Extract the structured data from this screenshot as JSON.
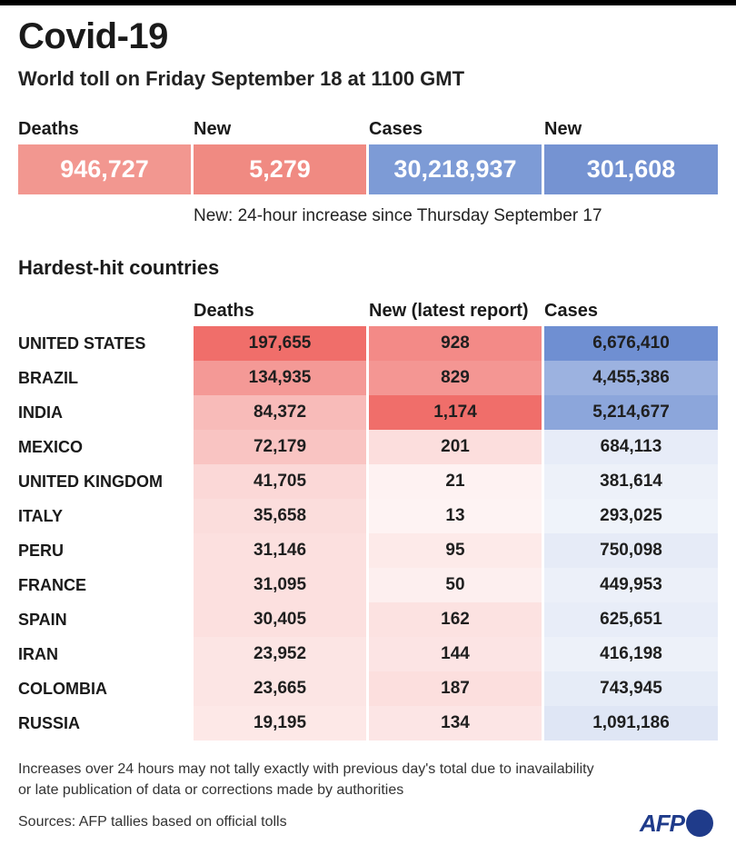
{
  "header": {
    "title": "Covid-19",
    "subtitle": "World toll on Friday September 18 at 1100 GMT"
  },
  "summary": {
    "deaths_label": "Deaths",
    "deaths": "946,727",
    "new_deaths_label": "New",
    "new_deaths": "5,279",
    "cases_label": "Cases",
    "cases": "30,218,937",
    "new_cases_label": "New",
    "new_cases": "301,608",
    "note": "New: 24-hour increase since Thursday September 17"
  },
  "section_title": "Hardest-hit countries",
  "footer": {
    "line1": "Increases over 24 hours may not tally exactly with previous day's total due to inavailability",
    "line2": "or late publication of data or corrections made by authorities",
    "sources": "Sources: AFP tallies based on official tolls",
    "logo": "AFP"
  },
  "colors": {
    "deaths_summary": "#f29790",
    "new_deaths_summary": "#f08a82",
    "cases_summary": "#7d9bd6",
    "new_cases_summary": "#7593d2",
    "red_scale": "#f06e6a",
    "blue_scale": "#6f8fd2"
  },
  "chart_data": {
    "type": "table",
    "columns": [
      "Deaths",
      "New (latest report)",
      "Cases"
    ],
    "rows": [
      {
        "country": "UNITED STATES",
        "deaths": 197655,
        "deaths_text": "197,655",
        "new": 928,
        "new_text": "928",
        "cases": 6676410,
        "cases_text": "6,676,410"
      },
      {
        "country": "BRAZIL",
        "deaths": 134935,
        "deaths_text": "134,935",
        "new": 829,
        "new_text": "829",
        "cases": 4455386,
        "cases_text": "4,455,386"
      },
      {
        "country": "INDIA",
        "deaths": 84372,
        "deaths_text": "84,372",
        "new": 1174,
        "new_text": "1,174",
        "cases": 5214677,
        "cases_text": "5,214,677"
      },
      {
        "country": "MEXICO",
        "deaths": 72179,
        "deaths_text": "72,179",
        "new": 201,
        "new_text": "201",
        "cases": 684113,
        "cases_text": "684,113"
      },
      {
        "country": "UNITED KINGDOM",
        "deaths": 41705,
        "deaths_text": "41,705",
        "new": 21,
        "new_text": "21",
        "cases": 381614,
        "cases_text": "381,614"
      },
      {
        "country": "ITALY",
        "deaths": 35658,
        "deaths_text": "35,658",
        "new": 13,
        "new_text": "13",
        "cases": 293025,
        "cases_text": "293,025"
      },
      {
        "country": "PERU",
        "deaths": 31146,
        "deaths_text": "31,146",
        "new": 95,
        "new_text": "95",
        "cases": 750098,
        "cases_text": "750,098"
      },
      {
        "country": "FRANCE",
        "deaths": 31095,
        "deaths_text": "31,095",
        "new": 50,
        "new_text": "50",
        "cases": 449953,
        "cases_text": "449,953"
      },
      {
        "country": "SPAIN",
        "deaths": 30405,
        "deaths_text": "30,405",
        "new": 162,
        "new_text": "162",
        "cases": 625651,
        "cases_text": "625,651"
      },
      {
        "country": "IRAN",
        "deaths": 23952,
        "deaths_text": "23,952",
        "new": 144,
        "new_text": "144",
        "cases": 416198,
        "cases_text": "416,198"
      },
      {
        "country": "COLOMBIA",
        "deaths": 23665,
        "deaths_text": "23,665",
        "new": 187,
        "new_text": "187",
        "cases": 743945,
        "cases_text": "743,945"
      },
      {
        "country": "RUSSIA",
        "deaths": 19195,
        "deaths_text": "19,195",
        "new": 134,
        "new_text": "134",
        "cases": 1091186,
        "cases_text": "1,091,186"
      }
    ]
  }
}
